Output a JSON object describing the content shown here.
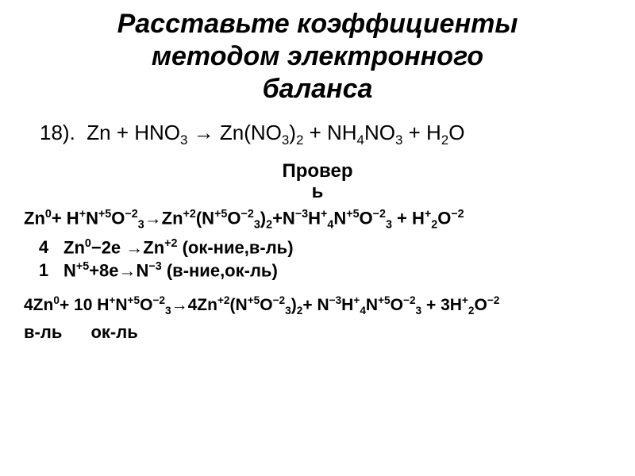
{
  "title_line1": "Расставьте коэффициенты",
  "title_line2": "методом электронного",
  "title_line3": "баланса",
  "equation_number": "18).",
  "check_label1": "Провер",
  "check_label2": "ь",
  "balance": {
    "row1_coef": "4",
    "row2_coef": "1"
  },
  "roles": {
    "reducer": "в-ль",
    "oxidizer": "ок-ль"
  }
}
